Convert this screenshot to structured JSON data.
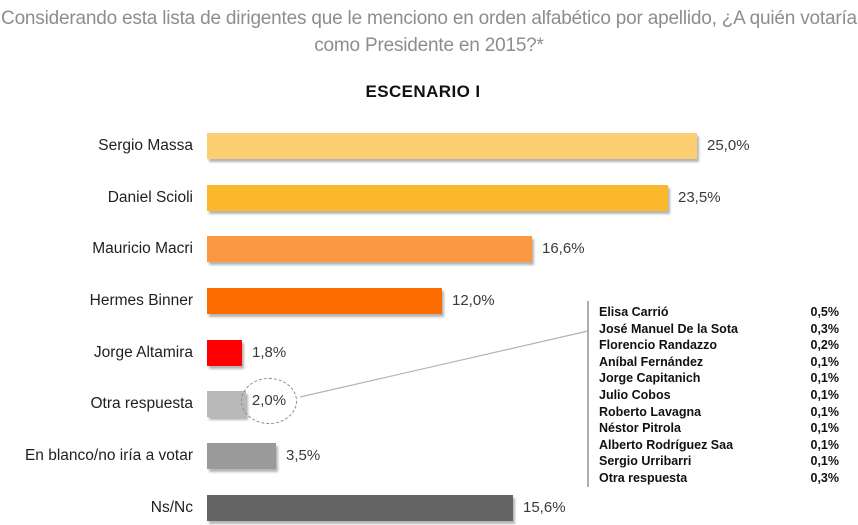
{
  "title": "Considerando esta lista de dirigentes que le menciono en orden alfabético por apellido, ¿A quién votaría como Presidente en 2015?*",
  "subtitle": "ESCENARIO I",
  "colors": {
    "title_gray": "#8D8D8D",
    "callout_line": "#B3B3B3",
    "category_text": "#1F1F1F",
    "value_text": "#3A3A3A"
  },
  "chart_data": {
    "type": "bar",
    "orientation": "horizontal",
    "title": "ESCENARIO I",
    "grid": false,
    "legend": false,
    "xlim": [
      0,
      30
    ],
    "categories": [
      "Sergio Massa",
      "Daniel Scioli",
      "Mauricio Macri",
      "Hermes Binner",
      "Jorge Altamira",
      "Otra respuesta",
      "En blanco/no iría a votar",
      "Ns/Nc"
    ],
    "values": [
      25.0,
      23.5,
      16.6,
      12.0,
      1.8,
      2.0,
      3.5,
      15.6
    ],
    "value_labels": [
      "25,0%",
      "23,5%",
      "16,6%",
      "12,0%",
      "1,8%",
      "2,0%",
      "3,5%",
      "15,6%"
    ],
    "bar_colors": [
      "#FBCE72",
      "#FCB82B",
      "#FA9941",
      "#FB6D00",
      "#FF0000",
      "#B9B9B9",
      "#9A9A9A",
      "#646464"
    ],
    "callout": {
      "highlighted_category": "Otra respuesta",
      "highlighted_value": "2,0%",
      "breakdown": [
        {
          "name": "Elisa Carrió",
          "value": "0,5%"
        },
        {
          "name": "José Manuel De la Sota",
          "value": "0,3%"
        },
        {
          "name": "Florencio Randazzo",
          "value": "0,2%"
        },
        {
          "name": "Aníbal Fernández",
          "value": "0,1%"
        },
        {
          "name": "Jorge Capitanich",
          "value": "0,1%"
        },
        {
          "name": "Julio Cobos",
          "value": "0,1%"
        },
        {
          "name": "Roberto Lavagna",
          "value": "0,1%"
        },
        {
          "name": "Néstor Pitrola",
          "value": "0,1%"
        },
        {
          "name": "Alberto Rodríguez Saa",
          "value": "0,1%"
        },
        {
          "name": "Sergio Urribarri",
          "value": "0,1%"
        },
        {
          "name": "Otra respuesta",
          "value": "0,3%"
        }
      ]
    }
  }
}
